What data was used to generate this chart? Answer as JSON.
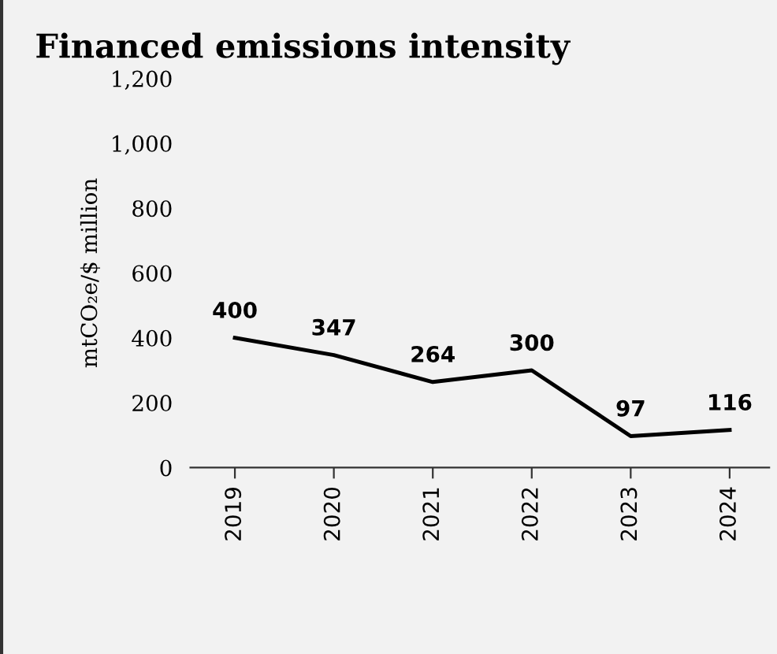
{
  "chart_data": {
    "type": "line",
    "title": "Financed emissions intensity",
    "ylabel": "mtCO₂e/$ million",
    "categories": [
      "2019",
      "2020",
      "2021",
      "2022",
      "2023",
      "2024"
    ],
    "series": [
      {
        "color": "#000000",
        "values": [
          400,
          347,
          264,
          300,
          97,
          116
        ]
      }
    ],
    "ylim": [
      0,
      1200
    ],
    "yticks": [
      0,
      200,
      400,
      600,
      800,
      {
        "value": 1000,
        "label": "1,000"
      },
      {
        "value": 1200,
        "label": "1,200"
      }
    ],
    "data_labels": true,
    "grid": false,
    "legend": false,
    "marker": "none",
    "line_style": "solid"
  }
}
